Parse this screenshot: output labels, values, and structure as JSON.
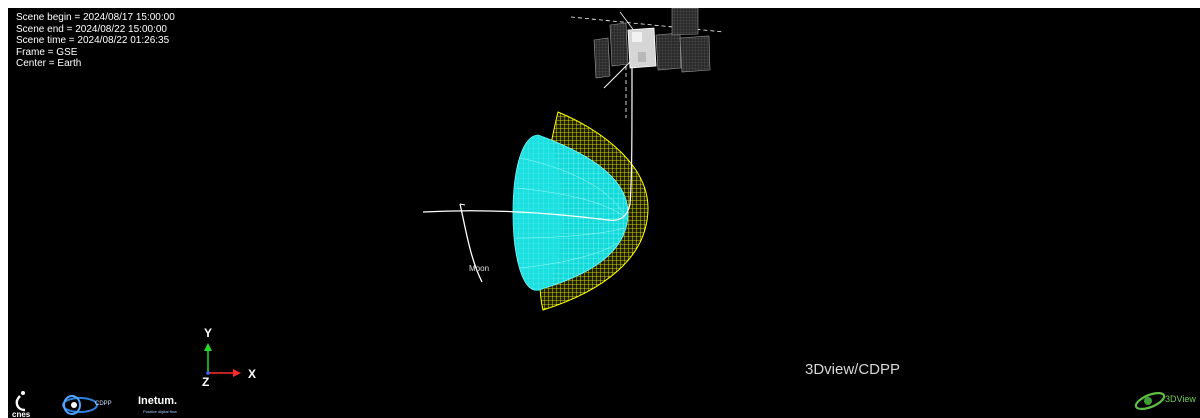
{
  "scene_info": {
    "begin": "Scene begin = 2024/08/17 15:00:00",
    "end": "Scene end = 2024/08/22 15:00:00",
    "time": "Scene time = 2024/08/22 01:26:35",
    "frame": "Frame = GSE",
    "center": "Center = Earth"
  },
  "labels": {
    "moon": "Moon",
    "watermark": "3Dview/CDPP"
  },
  "axes": {
    "x": "X",
    "y": "Y",
    "z": "Z",
    "colors": {
      "x": "#ff2a2a",
      "y": "#22dd22",
      "z": "#4060ff"
    }
  },
  "logos": {
    "cnes": "cnes",
    "cdpp": "CDPP",
    "inetum": "Inetum.",
    "inetum_tagline": "Positive digital flow",
    "threedview": "3DView"
  },
  "colors": {
    "background": "#000000",
    "bow_shock": "#ffff00",
    "magnetopause": "#00ffff",
    "orbit": "#ffffff"
  },
  "icons": {
    "spacecraft": "spacecraft-icon",
    "axes_triad": "axes-triad-icon",
    "cnes_logo": "cnes-logo-icon",
    "cdpp_logo": "cdpp-logo-icon",
    "inetum_logo": "inetum-logo-icon",
    "threedview_logo": "threedview-logo-icon"
  }
}
